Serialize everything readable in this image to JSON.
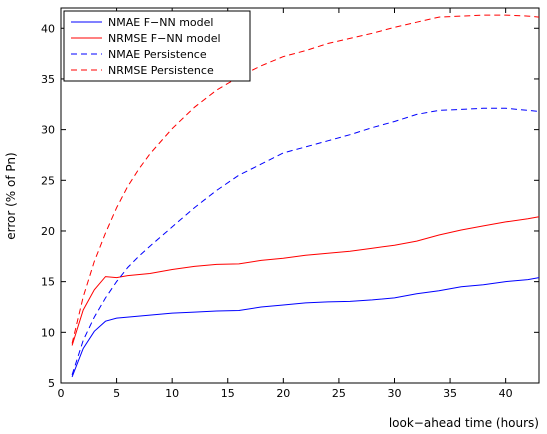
{
  "chart_data": {
    "type": "line",
    "xlabel": "look−ahead time (hours)",
    "ylabel": "error (% of Pn)",
    "xlim": [
      0,
      43
    ],
    "ylim": [
      5,
      42
    ],
    "xticks": [
      0,
      5,
      10,
      15,
      20,
      25,
      30,
      35,
      40
    ],
    "yticks": [
      5,
      10,
      15,
      20,
      25,
      30,
      35,
      40
    ],
    "legend_position": "top-left",
    "grid": false,
    "series": [
      {
        "name": "NMAE F−NN model",
        "color": "#0000ff",
        "style": "solid",
        "x": [
          1,
          2,
          3,
          4,
          5,
          6,
          8,
          10,
          12,
          14,
          16,
          18,
          20,
          22,
          24,
          26,
          28,
          30,
          32,
          34,
          36,
          38,
          40,
          42,
          43
        ],
        "y": [
          5.6,
          8.4,
          10.1,
          11.1,
          11.4,
          11.5,
          11.7,
          11.9,
          12.0,
          12.1,
          12.15,
          12.5,
          12.7,
          12.9,
          13.0,
          13.05,
          13.2,
          13.4,
          13.8,
          14.1,
          14.5,
          14.7,
          15.0,
          15.2,
          15.4
        ]
      },
      {
        "name": "NRMSE F−NN model",
        "color": "#ff0000",
        "style": "solid",
        "x": [
          1,
          2,
          3,
          4,
          5,
          6,
          8,
          10,
          12,
          14,
          16,
          18,
          20,
          22,
          24,
          26,
          28,
          30,
          32,
          34,
          36,
          38,
          40,
          42,
          43
        ],
        "y": [
          8.7,
          12.2,
          14.2,
          15.5,
          15.4,
          15.6,
          15.8,
          16.2,
          16.5,
          16.7,
          16.75,
          17.1,
          17.3,
          17.6,
          17.8,
          18.0,
          18.3,
          18.6,
          19.0,
          19.6,
          20.1,
          20.5,
          20.9,
          21.2,
          21.4
        ]
      },
      {
        "name": "NMAE Persistence",
        "color": "#0000ff",
        "style": "dashed",
        "x": [
          1,
          2,
          3,
          4,
          5,
          6,
          7,
          8,
          10,
          12,
          14,
          16,
          18,
          20,
          22,
          24,
          26,
          28,
          30,
          32,
          34,
          36,
          38,
          40,
          42,
          43
        ],
        "y": [
          5.8,
          9.2,
          11.5,
          13.4,
          15.0,
          16.4,
          17.5,
          18.5,
          20.4,
          22.3,
          24.0,
          25.5,
          26.6,
          27.7,
          28.3,
          28.9,
          29.5,
          30.2,
          30.8,
          31.5,
          31.9,
          32.0,
          32.1,
          32.1,
          31.9,
          31.8
        ]
      },
      {
        "name": "NRMSE Persistence",
        "color": "#ff0000",
        "style": "dashed",
        "x": [
          1,
          2,
          3,
          4,
          5,
          6,
          7,
          8,
          10,
          12,
          14,
          16,
          18,
          20,
          22,
          24,
          26,
          28,
          30,
          32,
          34,
          36,
          38,
          40,
          42,
          43
        ],
        "y": [
          8.9,
          13.5,
          17.0,
          19.8,
          22.3,
          24.4,
          26.1,
          27.6,
          30.1,
          32.2,
          33.9,
          35.2,
          36.3,
          37.2,
          37.8,
          38.5,
          39.0,
          39.5,
          40.1,
          40.6,
          41.1,
          41.2,
          41.3,
          41.3,
          41.2,
          41.1
        ]
      }
    ]
  }
}
